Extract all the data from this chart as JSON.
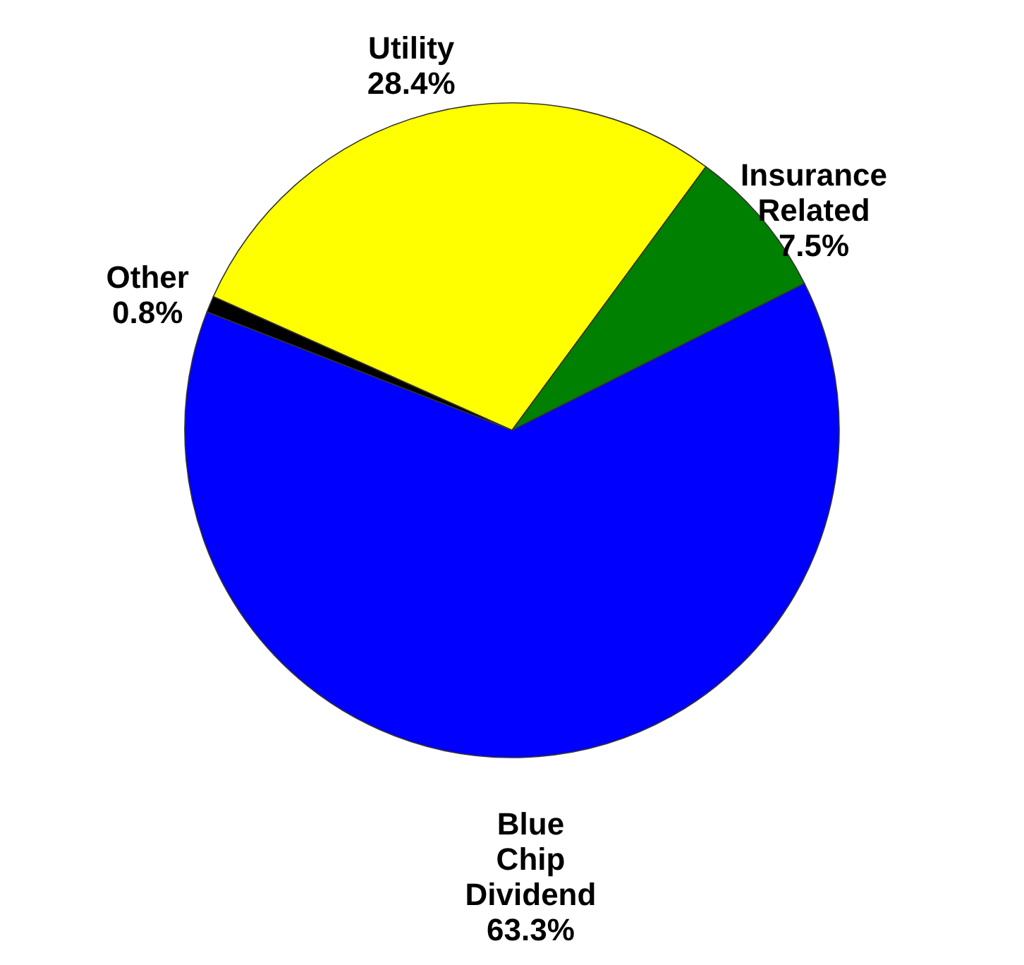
{
  "chart_data": {
    "type": "pie",
    "categories": [
      "Utility",
      "Insurance Related",
      "Blue Chip Dividend",
      "Other"
    ],
    "values": [
      28.4,
      7.5,
      63.3,
      0.8
    ],
    "colors": [
      "#ffff00",
      "#008000",
      "#0000ff",
      "#000000"
    ],
    "value_labels": [
      "28.4%",
      "7.5%",
      "63.3%",
      "0.8%"
    ]
  }
}
